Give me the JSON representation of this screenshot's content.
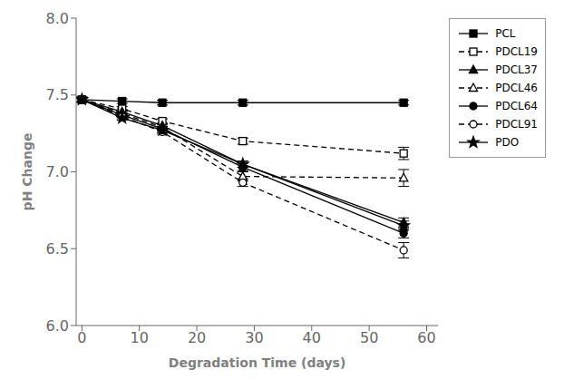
{
  "chart_data": {
    "type": "line",
    "x": [
      0,
      7,
      14,
      28,
      56
    ],
    "xlabel": "Degradation Time (days)",
    "ylabel": "pH Change",
    "xlim": [
      -1,
      62
    ],
    "ylim": [
      6.0,
      8.0
    ],
    "xticks": [
      0,
      10,
      20,
      30,
      40,
      50,
      60
    ],
    "yticks": [
      {
        "value": 6.0,
        "label": "6.0"
      },
      {
        "value": 6.5,
        "label": "6.5"
      },
      {
        "value": 7.0,
        "label": "7.0"
      },
      {
        "value": 7.5,
        "label": "7.5"
      },
      {
        "value": 8.0,
        "label": "8.0"
      }
    ],
    "legend": "upper right",
    "grid": false,
    "series": [
      {
        "name": "PCL",
        "color": "black",
        "marker": "square",
        "line_style": "solid",
        "values": [
          7.47,
          7.46,
          7.45,
          7.45,
          7.45
        ],
        "yerr": [
          0.015,
          0.015,
          0.015,
          0.015,
          0.015
        ]
      },
      {
        "name": "PDCL19",
        "color": "black",
        "marker": "square-open",
        "line_style": "dashed",
        "values": [
          7.47,
          7.41,
          7.33,
          7.2,
          7.12
        ],
        "yerr": [
          0.015,
          0.015,
          0.015,
          0.02,
          0.04
        ]
      },
      {
        "name": "PDCL37",
        "color": "black",
        "marker": "triangle",
        "line_style": "solid",
        "values": [
          7.47,
          7.39,
          7.3,
          7.05,
          6.67
        ],
        "yerr": [
          0.015,
          0.015,
          0.015,
          0.02,
          0.03
        ]
      },
      {
        "name": "PDCL46",
        "color": "black",
        "marker": "triangle-open",
        "line_style": "dashed",
        "values": [
          7.47,
          7.38,
          7.29,
          6.97,
          6.96
        ],
        "yerr": [
          0.015,
          0.015,
          0.015,
          0.03,
          0.055
        ]
      },
      {
        "name": "PDCL64",
        "color": "black",
        "marker": "circle",
        "line_style": "solid",
        "values": [
          7.47,
          7.37,
          7.28,
          7.03,
          6.6
        ],
        "yerr": [
          0.015,
          0.015,
          0.015,
          0.025,
          0.03
        ]
      },
      {
        "name": "PDCL91",
        "color": "black",
        "marker": "circle-open",
        "line_style": "dashed",
        "values": [
          7.47,
          7.36,
          7.26,
          6.93,
          6.49
        ],
        "yerr": [
          0.015,
          0.015,
          0.015,
          0.025,
          0.05
        ]
      },
      {
        "name": "PDO",
        "color": "black",
        "marker": "star",
        "line_style": "solid",
        "values": [
          7.47,
          7.35,
          7.27,
          7.05,
          6.65
        ],
        "yerr": [
          0.015,
          0.015,
          0.015,
          0.02,
          0.03
        ]
      }
    ]
  }
}
